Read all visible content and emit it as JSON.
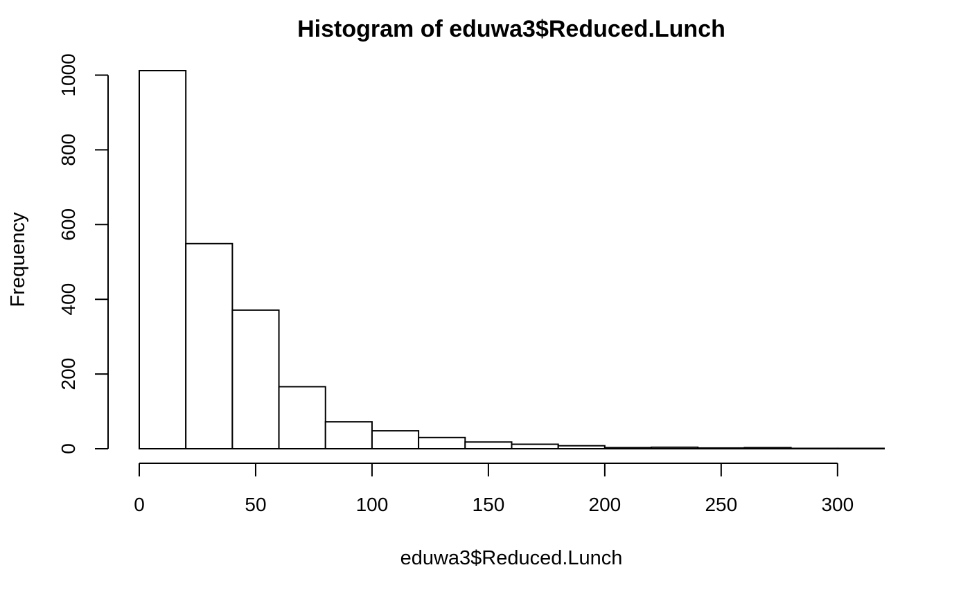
{
  "chart_data": {
    "type": "bar",
    "title": "Histogram of eduwa3$Reduced.Lunch",
    "xlabel": "eduwa3$Reduced.Lunch",
    "ylabel": "Frequency",
    "bin_edges": [
      0,
      20,
      40,
      60,
      80,
      100,
      120,
      140,
      160,
      180,
      200,
      220,
      240,
      260,
      280,
      300,
      320
    ],
    "values": [
      1012,
      549,
      371,
      166,
      72,
      48,
      30,
      18,
      12,
      8,
      3,
      4,
      2,
      3,
      1,
      1
    ],
    "xlim": [
      0,
      320
    ],
    "ylim": [
      0,
      1012
    ],
    "x_ticks": [
      0,
      50,
      100,
      150,
      200,
      250,
      300
    ],
    "y_ticks": [
      0,
      200,
      400,
      600,
      800,
      1000
    ],
    "x_tick_labels": [
      "0",
      "50",
      "100",
      "150",
      "200",
      "250",
      "300"
    ],
    "y_tick_labels": [
      "0",
      "200",
      "400",
      "600",
      "800",
      "1000"
    ],
    "bar_fill": "#ffffff",
    "bar_stroke": "#000000",
    "grid": false,
    "legend": "none"
  }
}
